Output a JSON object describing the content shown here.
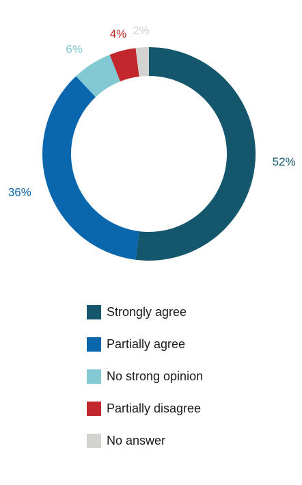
{
  "chart_data": {
    "type": "pie",
    "style": "donut",
    "title": "",
    "categories": [
      "Strongly agree",
      "Partially agree",
      "No strong opinion",
      "Partially disagree",
      "No answer"
    ],
    "values": [
      52,
      36,
      6,
      4,
      2
    ],
    "labels": [
      "52%",
      "36%",
      "6%",
      "4%",
      "2%"
    ],
    "colors": [
      "#14566b",
      "#0a66ad",
      "#83c9d3",
      "#c1272d",
      "#d3d3d1"
    ],
    "legend_position": "bottom"
  },
  "legend": {
    "items": [
      {
        "label": "Strongly agree",
        "color": "#14566b"
      },
      {
        "label": "Partially agree",
        "color": "#0a66ad"
      },
      {
        "label": "No strong opinion",
        "color": "#83c9d3"
      },
      {
        "label": "Partially disagree",
        "color": "#c1272d"
      },
      {
        "label": "No answer",
        "color": "#d3d3d1"
      }
    ]
  }
}
